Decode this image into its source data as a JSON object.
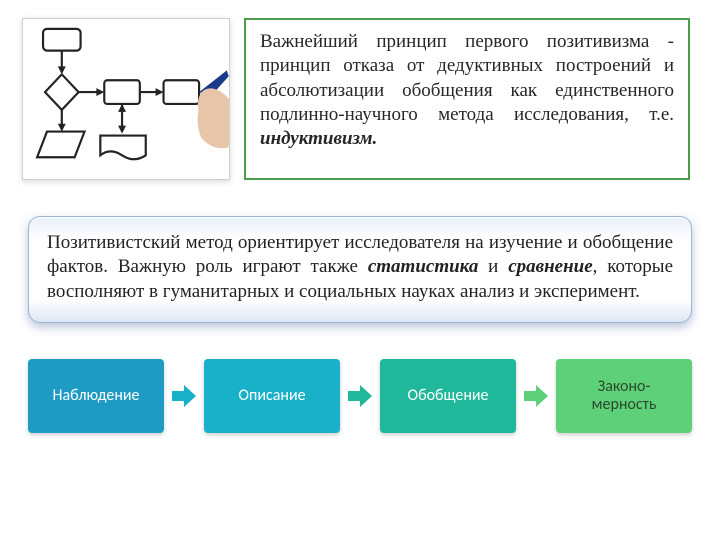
{
  "top_text": {
    "line1": "Важнейший принцип первого позитивизма - принцип отказа от дедуктивных построений и абсолютизации обобщения как единственного подлинно-научного метода исследования, т.е. ",
    "em": "индуктивизм."
  },
  "blue_text": {
    "part1": "Позитивистский метод ориентирует исследователя на изучение и обобщение фактов. Важную роль играют также ",
    "em1": "статистика",
    "part2": " и ",
    "em2": "сравнение",
    "part3": ", которые восполняют в гуманитарных и социальных науках анализ и эксперимент."
  },
  "flow": {
    "steps": [
      {
        "label": "Наблюдение",
        "bg": "#1e9bc4",
        "fg": "#ffffff",
        "arrow_color": "#1e9bc4"
      },
      {
        "label": "Описание",
        "bg": "#19b0c9",
        "fg": "#ffffff",
        "arrow_color": "#19b0c9"
      },
      {
        "label": "Обобщение",
        "bg": "#1fb89b",
        "fg": "#ffffff",
        "arrow_color": "#1fb89b"
      },
      {
        "label": "Законо-\nмерность",
        "bg": "#5fd07a",
        "fg": "#2a4a2a",
        "arrow_color": "#5fd07a"
      }
    ]
  },
  "green_border": "#4a9d4a",
  "diagram": {
    "stroke": "#232323",
    "hand_skin": "#e8c4a8",
    "pen": "#1a3a8a"
  }
}
